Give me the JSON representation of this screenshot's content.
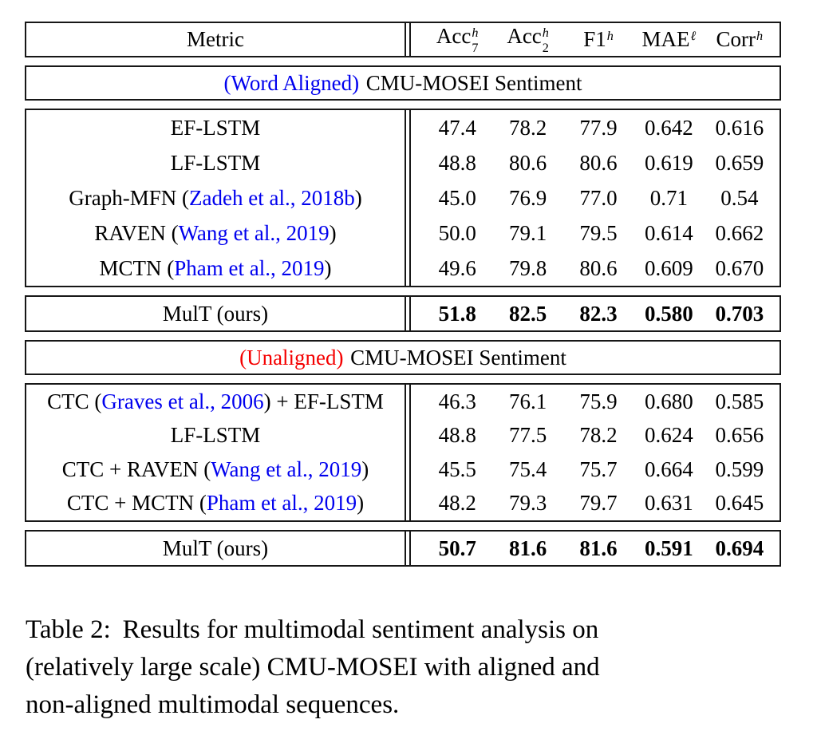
{
  "colors": {
    "citation_blue": "#0000EE",
    "aligned_blue": "#0000EE",
    "unaligned_red": "#F50000",
    "rule_color": "#171717"
  },
  "header": {
    "metric_label": "Metric",
    "columns": [
      {
        "base": "Acc",
        "sup": "h",
        "sub": "7"
      },
      {
        "base": "Acc",
        "sup": "h",
        "sub": "2"
      },
      {
        "base": "F1",
        "sup": "h",
        "sub": ""
      },
      {
        "base": "MAE",
        "sup": "ℓ",
        "sub": ""
      },
      {
        "base": "Corr",
        "sup": "h",
        "sub": ""
      }
    ]
  },
  "aligned": {
    "banner": {
      "tag": "(Word Aligned)",
      "rest": "CMU-MOSEI Sentiment"
    },
    "rows": [
      {
        "pre": "EF-LSTM",
        "cite": "",
        "post": "",
        "vals": [
          "47.4",
          "78.2",
          "77.9",
          "0.642",
          "0.616"
        ]
      },
      {
        "pre": "LF-LSTM",
        "cite": "",
        "post": "",
        "vals": [
          "48.8",
          "80.6",
          "80.6",
          "0.619",
          "0.659"
        ]
      },
      {
        "pre": "Graph-MFN (",
        "cite": "Zadeh et al., 2018b",
        "post": ")",
        "vals": [
          "45.0",
          "76.9",
          "77.0",
          "0.71",
          "0.54"
        ]
      },
      {
        "pre": "RAVEN (",
        "cite": "Wang et al., 2019",
        "post": ")",
        "vals": [
          "50.0",
          "79.1",
          "79.5",
          "0.614",
          "0.662"
        ]
      },
      {
        "pre": "MCTN (",
        "cite": "Pham et al., 2019",
        "post": ")",
        "vals": [
          "49.6",
          "79.8",
          "80.6",
          "0.609",
          "0.670"
        ]
      }
    ],
    "mult": {
      "name": "MulT (ours)",
      "vals": [
        "51.8",
        "82.5",
        "82.3",
        "0.580",
        "0.703"
      ]
    }
  },
  "unaligned": {
    "banner": {
      "tag": "(Unaligned)",
      "rest": "CMU-MOSEI Sentiment"
    },
    "rows": [
      {
        "pre": "CTC (",
        "cite": "Graves et al., 2006",
        "post": ") + EF-LSTM",
        "vals": [
          "46.3",
          "76.1",
          "75.9",
          "0.680",
          "0.585"
        ]
      },
      {
        "pre": "LF-LSTM",
        "cite": "",
        "post": "",
        "vals": [
          "48.8",
          "77.5",
          "78.2",
          "0.624",
          "0.656"
        ]
      },
      {
        "pre": "CTC + RAVEN (",
        "cite": "Wang et al., 2019",
        "post": ")",
        "vals": [
          "45.5",
          "75.4",
          "75.7",
          "0.664",
          "0.599"
        ]
      },
      {
        "pre": "CTC + MCTN (",
        "cite": "Pham et al., 2019",
        "post": ")",
        "vals": [
          "48.2",
          "79.3",
          "79.7",
          "0.631",
          "0.645"
        ]
      }
    ],
    "mult": {
      "name": "MulT (ours)",
      "vals": [
        "50.7",
        "81.6",
        "81.6",
        "0.591",
        "0.694"
      ]
    }
  },
  "caption": {
    "label": "Table 2:",
    "lines": [
      "Results for multimodal sentiment analysis on",
      "(relatively large scale) CMU-MOSEI with aligned and",
      "non-aligned multimodal sequences."
    ]
  },
  "chart_data": {
    "type": "table",
    "title": "Table 2: Results for multimodal sentiment analysis on (relatively large scale) CMU-MOSEI with aligned and non-aligned multimodal sequences.",
    "columns": [
      "Metric",
      "Acc_7^h",
      "Acc_2^h",
      "F1^h",
      "MAE^l",
      "Corr^h"
    ],
    "sections": [
      {
        "section": "(Word Aligned) CMU-MOSEI Sentiment",
        "rows": [
          [
            "EF-LSTM",
            47.4,
            78.2,
            77.9,
            0.642,
            0.616
          ],
          [
            "LF-LSTM",
            48.8,
            80.6,
            80.6,
            0.619,
            0.659
          ],
          [
            "Graph-MFN (Zadeh et al., 2018b)",
            45.0,
            76.9,
            77.0,
            0.71,
            0.54
          ],
          [
            "RAVEN (Wang et al., 2019)",
            50.0,
            79.1,
            79.5,
            0.614,
            0.662
          ],
          [
            "MCTN (Pham et al., 2019)",
            49.6,
            79.8,
            80.6,
            0.609,
            0.67
          ],
          [
            "MulT (ours)",
            51.8,
            82.5,
            82.3,
            0.58,
            0.703
          ]
        ]
      },
      {
        "section": "(Unaligned) CMU-MOSEI Sentiment",
        "rows": [
          [
            "CTC (Graves et al., 2006) + EF-LSTM",
            46.3,
            76.1,
            75.9,
            0.68,
            0.585
          ],
          [
            "LF-LSTM",
            48.8,
            77.5,
            78.2,
            0.624,
            0.656
          ],
          [
            "CTC + RAVEN (Wang et al., 2019)",
            45.5,
            75.4,
            75.7,
            0.664,
            0.599
          ],
          [
            "CTC + MCTN (Pham et al., 2019)",
            48.2,
            79.3,
            79.7,
            0.631,
            0.645
          ],
          [
            "MulT (ours)",
            50.7,
            81.6,
            81.6,
            0.591,
            0.694
          ]
        ]
      }
    ]
  }
}
